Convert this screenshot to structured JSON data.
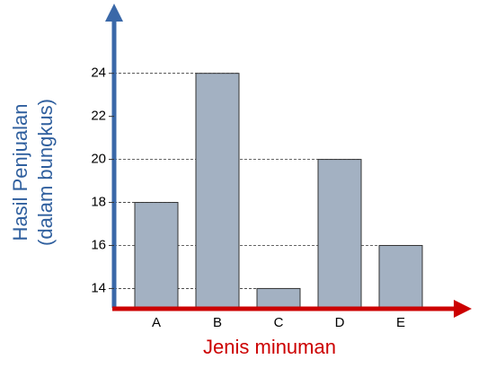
{
  "chart_data": {
    "type": "bar",
    "x_label": "Jenis minuman",
    "y_label": [
      "Hasil Penjualan",
      "(dalam bungkus)"
    ],
    "categories": [
      "A",
      "B",
      "C",
      "D",
      "E"
    ],
    "values": [
      18,
      24,
      14,
      20,
      16
    ],
    "color": "#a3b1c2",
    "ylim": [
      13.1,
      27.2
    ],
    "yticks": [
      14,
      16,
      18,
      20,
      22,
      24
    ],
    "grid": true
  }
}
